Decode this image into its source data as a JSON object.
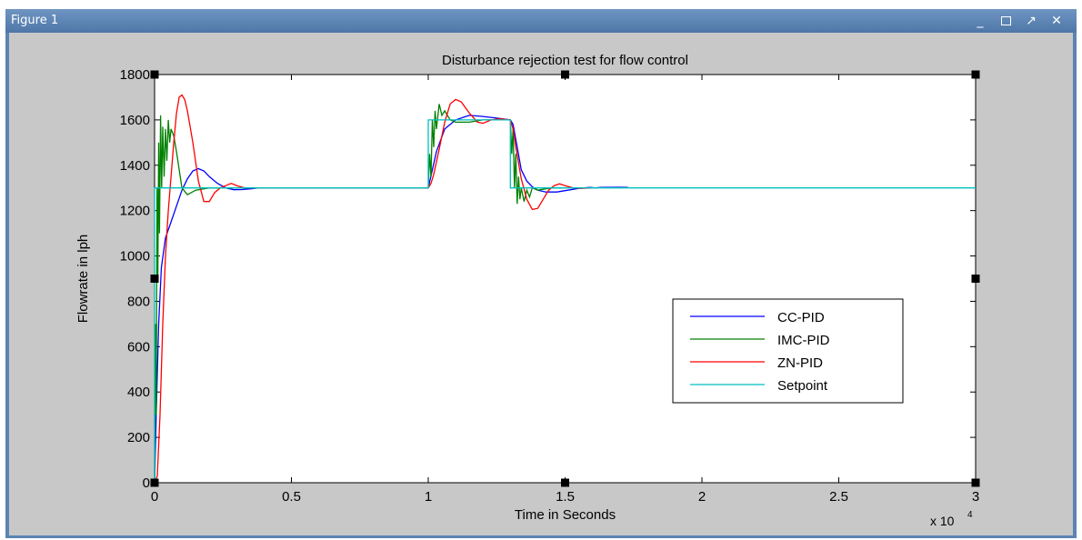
{
  "window": {
    "title": "Figure 1",
    "controls": {
      "minimize": "_",
      "maximize": "□",
      "undock": "↗",
      "close": "✕"
    },
    "colors": {
      "titlebar": "#5b83b2",
      "figure_bg": "#c8c8c8",
      "axes_bg": "#ffffff"
    }
  },
  "chart_data": {
    "type": "line",
    "title": "Disturbance rejection test for flow control",
    "xlabel": "Time in Seconds",
    "ylabel": "Flowrate in lph",
    "x_exponent_label": "x 10",
    "x_exponent_power": "4",
    "xlim": [
      0,
      30000
    ],
    "ylim": [
      0,
      1800
    ],
    "xticks": [
      0,
      5000,
      10000,
      15000,
      20000,
      25000,
      30000
    ],
    "xtick_labels": [
      "0",
      "0.5",
      "1",
      "1.5",
      "2",
      "2.5",
      "3"
    ],
    "yticks": [
      0,
      200,
      400,
      600,
      800,
      1000,
      1200,
      1400,
      1600,
      1800
    ],
    "ytick_labels": [
      "0",
      "200",
      "400",
      "600",
      "800",
      "1000",
      "1200",
      "1400",
      "1600",
      "1800"
    ],
    "grid": false,
    "legend_position": "lower-right",
    "series": [
      {
        "name": "CC-PID",
        "color": "#0000ff",
        "x": [
          0,
          60,
          150,
          250,
          400,
          600,
          800,
          1000,
          1200,
          1400,
          1600,
          1800,
          2000,
          2300,
          2600,
          2900,
          3200,
          3500,
          3800,
          10000,
          10150,
          10300,
          10600,
          11000,
          11500,
          12000,
          12500,
          13000,
          13100,
          13250,
          13400,
          13600,
          13800,
          14000,
          14300,
          14700,
          15100,
          15500,
          15900,
          16100,
          16300,
          17000,
          17300
        ],
        "y": [
          0,
          300,
          700,
          950,
          1080,
          1150,
          1220,
          1290,
          1340,
          1375,
          1385,
          1375,
          1350,
          1320,
          1300,
          1292,
          1293,
          1296,
          1300,
          1300,
          1380,
          1460,
          1560,
          1600,
          1620,
          1615,
          1608,
          1600,
          1580,
          1480,
          1380,
          1330,
          1305,
          1290,
          1282,
          1282,
          1290,
          1298,
          1302,
          1300,
          1302,
          1303,
          1302
        ]
      },
      {
        "name": "IMC-PID",
        "color": "#008000",
        "x": [
          0,
          30,
          60,
          90,
          120,
          150,
          180,
          220,
          260,
          300,
          350,
          400,
          450,
          500,
          550,
          600,
          700,
          800,
          900,
          1000,
          1200,
          1500,
          2000,
          3000,
          10000,
          10050,
          10100,
          10150,
          10200,
          10250,
          10300,
          10400,
          10500,
          10600,
          10800,
          11000,
          11500,
          12000,
          12500,
          13000,
          13050,
          13100,
          13150,
          13200,
          13250,
          13300,
          13350,
          13400,
          13500,
          13600,
          13700,
          13800,
          14000,
          14500,
          15000
        ],
        "y": [
          0,
          700,
          300,
          1300,
          900,
          1500,
          1100,
          1620,
          1300,
          1570,
          1350,
          1560,
          1420,
          1600,
          1500,
          1560,
          1530,
          1460,
          1380,
          1300,
          1270,
          1290,
          1300,
          1300,
          1300,
          1450,
          1350,
          1600,
          1480,
          1640,
          1560,
          1670,
          1620,
          1640,
          1600,
          1590,
          1590,
          1600,
          1600,
          1600,
          1450,
          1560,
          1300,
          1450,
          1230,
          1350,
          1250,
          1300,
          1240,
          1290,
          1260,
          1300,
          1290,
          1300,
          1300
        ]
      },
      {
        "name": "ZN-PID",
        "color": "#ff0000",
        "x": [
          0,
          100,
          200,
          300,
          400,
          500,
          600,
          700,
          800,
          900,
          1000,
          1100,
          1200,
          1400,
          1600,
          1800,
          2000,
          2200,
          2400,
          2600,
          2800,
          3000,
          3300,
          3600,
          10000,
          10100,
          10200,
          10400,
          10600,
          10800,
          11000,
          11200,
          11500,
          11800,
          12000,
          12300,
          12600,
          13000,
          13100,
          13200,
          13400,
          13600,
          13800,
          14000,
          14200,
          14400,
          14600,
          14800,
          15000,
          15300,
          15600,
          16000
        ],
        "y": [
          0,
          30,
          300,
          700,
          1000,
          1200,
          1350,
          1500,
          1630,
          1700,
          1710,
          1690,
          1640,
          1500,
          1330,
          1240,
          1240,
          1280,
          1300,
          1310,
          1320,
          1310,
          1300,
          1300,
          1300,
          1320,
          1360,
          1470,
          1590,
          1670,
          1690,
          1680,
          1630,
          1590,
          1585,
          1600,
          1605,
          1600,
          1560,
          1480,
          1340,
          1250,
          1205,
          1210,
          1250,
          1290,
          1310,
          1318,
          1310,
          1300,
          1298,
          1300
        ]
      },
      {
        "name": "Setpoint",
        "color": "#00bfbf",
        "x": [
          0,
          0,
          30,
          10000,
          10000,
          13000,
          13000,
          30000
        ],
        "y": [
          0,
          1300,
          1300,
          1300,
          1600,
          1600,
          1300,
          1300
        ]
      }
    ]
  }
}
